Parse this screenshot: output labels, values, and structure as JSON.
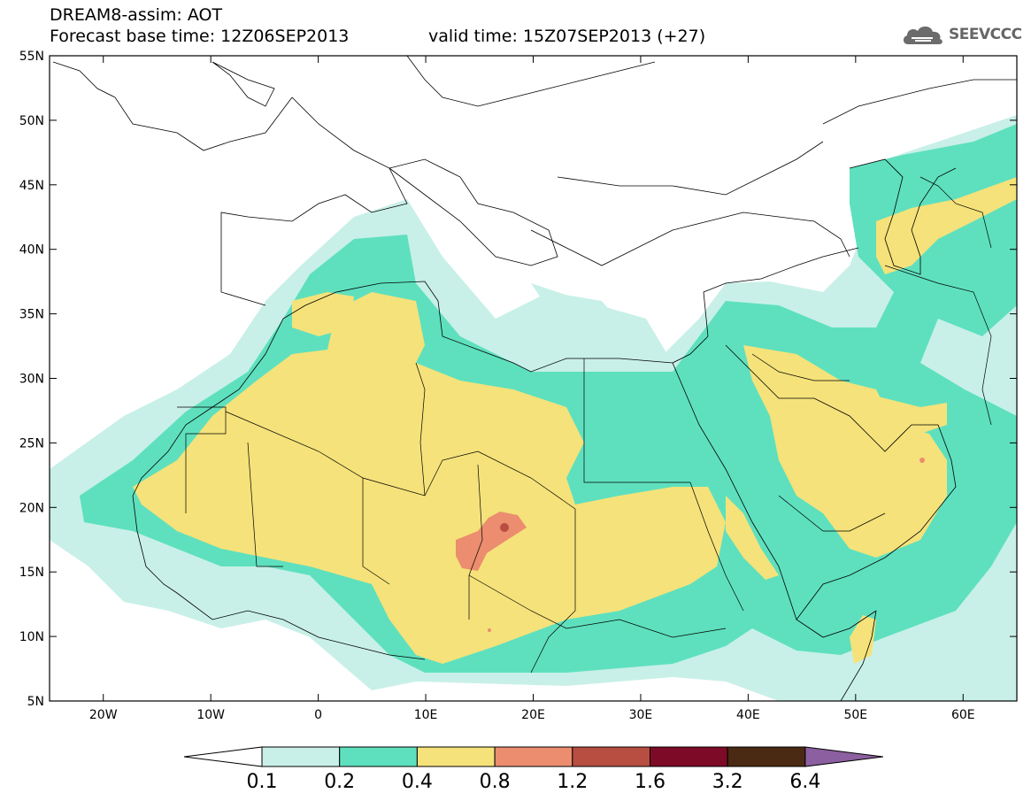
{
  "header": {
    "line1": "DREAM8-assim: AOT",
    "base": "Forecast base time: 12Z06SEP2013",
    "valid": "valid time: 15Z07SEP2013 (+27)"
  },
  "logo": {
    "text": "SEEVCCC",
    "icon": "cloud-icon"
  },
  "map": {
    "lat_labels": [
      "55N",
      "50N",
      "45N",
      "40N",
      "35N",
      "30N",
      "25N",
      "20N",
      "15N",
      "10N",
      "5N"
    ],
    "lon_labels": [
      "20W",
      "10W",
      "0",
      "10E",
      "20E",
      "30E",
      "40E",
      "50E",
      "60E"
    ],
    "lon_range": [
      -25,
      65
    ],
    "lat_range": [
      5,
      55
    ]
  },
  "colorbar": {
    "ticks": [
      "0.1",
      "0.2",
      "0.4",
      "0.8",
      "1.2",
      "1.6",
      "3.2",
      "6.4"
    ],
    "colors": [
      "#ffffff",
      "#c8f0e8",
      "#5ee0be",
      "#f5e27a",
      "#eb8d6e",
      "#b84e42",
      "#7d0a26",
      "#4a2a12",
      "#8c5fa0"
    ]
  }
}
